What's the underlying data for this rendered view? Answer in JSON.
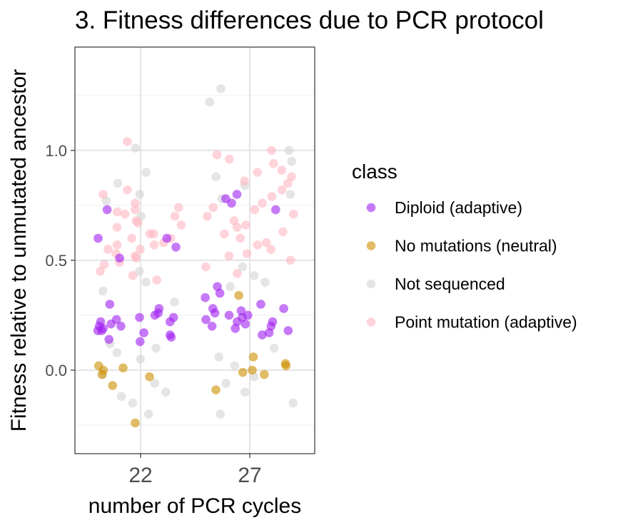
{
  "chart_data": {
    "type": "scatter",
    "title": "3. Fitness differences due to PCR protocol",
    "xlabel": "number of PCR cycles",
    "ylabel": "Fitness relative to unmutated ancestor",
    "categories": [
      "22",
      "27"
    ],
    "yticks": [
      "0.0",
      "0.5",
      "1.0"
    ],
    "ylim": [
      -0.38,
      1.47
    ],
    "grid": true,
    "legend": {
      "title": "class",
      "position": "right",
      "entries": [
        {
          "name": "Diploid (adaptive)",
          "color": "#a020f0"
        },
        {
          "name": "No mutations (neutral)",
          "color": "#cd9000"
        },
        {
          "name": "Not sequenced",
          "color": "#d3d3d3"
        },
        {
          "name": "Point mutation (adaptive)",
          "color": "#ffb6c1"
        }
      ]
    },
    "series": [
      {
        "name": "Not sequenced",
        "color": "#d3d3d3",
        "points": [
          [
            22,
            0.8
          ],
          [
            22,
            0.9
          ],
          [
            22,
            0.77
          ],
          [
            22,
            0.85
          ],
          [
            22,
            1.01
          ],
          [
            22,
            0.7
          ],
          [
            22,
            0.36
          ],
          [
            22,
            0.31
          ],
          [
            22,
            -0.2
          ],
          [
            22,
            -0.15
          ],
          [
            22,
            -0.12
          ],
          [
            22,
            -0.1
          ],
          [
            22,
            -0.06
          ],
          [
            22,
            -0.02
          ],
          [
            22,
            0.05
          ],
          [
            22,
            0.08
          ],
          [
            22,
            0.1
          ],
          [
            22,
            0.12
          ],
          [
            22,
            0.4
          ],
          [
            22,
            0.45
          ],
          [
            27,
            1.28
          ],
          [
            27,
            1.22
          ],
          [
            27,
            1.0
          ],
          [
            27,
            0.95
          ],
          [
            27,
            0.88
          ],
          [
            27,
            0.84
          ],
          [
            27,
            0.8
          ],
          [
            27,
            0.78
          ],
          [
            27,
            0.47
          ],
          [
            27,
            0.43
          ],
          [
            27,
            0.4
          ],
          [
            27,
            0.38
          ],
          [
            27,
            -0.2
          ],
          [
            27,
            -0.15
          ],
          [
            27,
            -0.1
          ],
          [
            27,
            -0.06
          ],
          [
            27,
            -0.03
          ],
          [
            27,
            0.02
          ],
          [
            27,
            0.06
          ],
          [
            27,
            0.1
          ]
        ]
      },
      {
        "name": "Point mutation (adaptive)",
        "color": "#ffb6c1",
        "points": [
          [
            22,
            1.04
          ],
          [
            22,
            0.82
          ],
          [
            22,
            0.8
          ],
          [
            22,
            0.74
          ],
          [
            22,
            0.72
          ],
          [
            22,
            0.7
          ],
          [
            22,
            0.67
          ],
          [
            22,
            0.65
          ],
          [
            22,
            0.62
          ],
          [
            22,
            0.6
          ],
          [
            22,
            0.58
          ],
          [
            22,
            0.57
          ],
          [
            22,
            0.55
          ],
          [
            22,
            0.53
          ],
          [
            22,
            0.51
          ],
          [
            22,
            0.48
          ],
          [
            22,
            0.45
          ],
          [
            22,
            0.43
          ],
          [
            22,
            0.41
          ],
          [
            22,
            0.62
          ],
          [
            22,
            0.66
          ],
          [
            22,
            0.71
          ],
          [
            22,
            0.76
          ],
          [
            22,
            0.55
          ],
          [
            22,
            0.52
          ],
          [
            22,
            0.6
          ],
          [
            22,
            0.68
          ],
          [
            22,
            0.73
          ],
          [
            22,
            0.49
          ],
          [
            22,
            0.57
          ],
          [
            27,
            1.0
          ],
          [
            27,
            0.98
          ],
          [
            27,
            0.96
          ],
          [
            27,
            0.94
          ],
          [
            27,
            0.91
          ],
          [
            27,
            0.88
          ],
          [
            27,
            0.85
          ],
          [
            27,
            0.82
          ],
          [
            27,
            0.79
          ],
          [
            27,
            0.76
          ],
          [
            27,
            0.73
          ],
          [
            27,
            0.7
          ],
          [
            27,
            0.68
          ],
          [
            27,
            0.65
          ],
          [
            27,
            0.62
          ],
          [
            27,
            0.6
          ],
          [
            27,
            0.58
          ],
          [
            27,
            0.55
          ],
          [
            27,
            0.52
          ],
          [
            27,
            0.5
          ],
          [
            27,
            0.47
          ],
          [
            27,
            0.44
          ],
          [
            27,
            0.9
          ],
          [
            27,
            0.86
          ],
          [
            27,
            0.74
          ],
          [
            27,
            0.71
          ],
          [
            27,
            0.66
          ],
          [
            27,
            0.63
          ],
          [
            27,
            0.57
          ],
          [
            27,
            0.53
          ]
        ]
      },
      {
        "name": "Diploid (adaptive)",
        "color": "#a020f0",
        "points": [
          [
            22,
            0.73
          ],
          [
            22,
            0.6
          ],
          [
            22,
            0.56
          ],
          [
            22,
            0.51
          ],
          [
            22,
            0.6
          ],
          [
            22,
            0.3
          ],
          [
            22,
            0.28
          ],
          [
            22,
            0.26
          ],
          [
            22,
            0.25
          ],
          [
            22,
            0.24
          ],
          [
            22,
            0.23
          ],
          [
            22,
            0.22
          ],
          [
            22,
            0.21
          ],
          [
            22,
            0.2
          ],
          [
            22,
            0.19
          ],
          [
            22,
            0.18
          ],
          [
            22,
            0.17
          ],
          [
            22,
            0.16
          ],
          [
            22,
            0.15
          ],
          [
            22,
            0.14
          ],
          [
            22,
            0.13
          ],
          [
            22,
            0.22
          ],
          [
            22,
            0.2
          ],
          [
            22,
            0.24
          ],
          [
            22,
            0.18
          ],
          [
            27,
            0.8
          ],
          [
            27,
            0.78
          ],
          [
            27,
            0.76
          ],
          [
            27,
            0.73
          ],
          [
            27,
            0.38
          ],
          [
            27,
            0.35
          ],
          [
            27,
            0.33
          ],
          [
            27,
            0.3
          ],
          [
            27,
            0.28
          ],
          [
            27,
            0.27
          ],
          [
            27,
            0.26
          ],
          [
            27,
            0.25
          ],
          [
            27,
            0.24
          ],
          [
            27,
            0.23
          ],
          [
            27,
            0.22
          ],
          [
            27,
            0.21
          ],
          [
            27,
            0.2
          ],
          [
            27,
            0.19
          ],
          [
            27,
            0.18
          ],
          [
            27,
            0.17
          ],
          [
            27,
            0.16
          ],
          [
            27,
            0.25
          ],
          [
            27,
            0.22
          ],
          [
            27,
            0.2
          ],
          [
            27,
            0.28
          ]
        ]
      },
      {
        "name": "No mutations (neutral)",
        "color": "#cd9000",
        "points": [
          [
            22,
            0.0
          ],
          [
            22,
            -0.02
          ],
          [
            22,
            -0.07
          ],
          [
            22,
            0.01
          ],
          [
            22,
            0.02
          ],
          [
            22,
            -0.03
          ],
          [
            22,
            -0.24
          ],
          [
            27,
            0.34
          ],
          [
            27,
            0.06
          ],
          [
            27,
            0.02
          ],
          [
            27,
            0.0
          ],
          [
            27,
            -0.01
          ],
          [
            27,
            -0.09
          ],
          [
            27,
            0.03
          ],
          [
            27,
            -0.02
          ]
        ]
      }
    ]
  }
}
